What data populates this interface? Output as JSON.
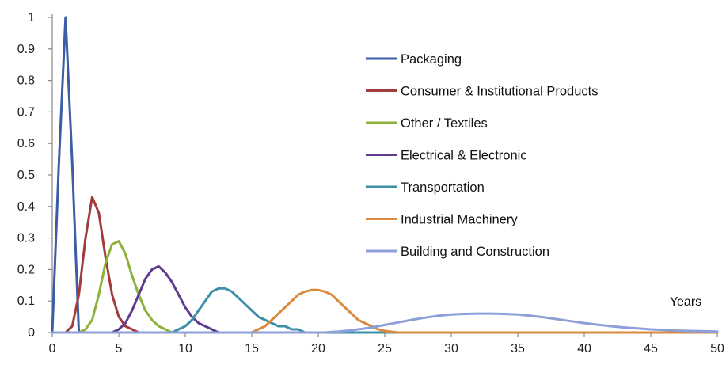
{
  "chart_data": {
    "type": "line",
    "title": "",
    "xlabel": "Years",
    "ylabel": "",
    "xlim": [
      0,
      50
    ],
    "ylim": [
      0,
      1
    ],
    "x_ticks": [
      "0",
      "5",
      "10",
      "15",
      "20",
      "25",
      "30",
      "35",
      "40",
      "45",
      "50"
    ],
    "y_ticks": [
      "0",
      "0.1",
      "0.2",
      "0.3",
      "0.4",
      "0.5",
      "0.6",
      "0.7",
      "0.8",
      "0.9",
      "1"
    ],
    "grid": false,
    "legend_position": "top-right",
    "x": [
      0,
      0.5,
      1,
      1.5,
      2,
      2.5,
      3,
      3.5,
      4,
      4.5,
      5,
      5.5,
      6,
      6.5,
      7,
      7.5,
      8,
      8.5,
      9,
      9.5,
      10,
      10.5,
      11,
      11.5,
      12,
      12.5,
      13,
      13.5,
      14,
      14.5,
      15,
      15.5,
      16,
      16.5,
      17,
      17.5,
      18,
      18.5,
      19,
      19.5,
      20,
      20.5,
      21,
      21.5,
      22,
      22.5,
      23,
      23.5,
      24,
      24.5,
      25,
      26,
      27,
      28,
      29,
      30,
      31,
      32,
      33,
      34,
      35,
      36,
      37,
      38,
      39,
      40,
      41,
      42,
      43,
      44,
      45,
      46,
      47,
      48,
      49,
      50
    ],
    "series": [
      {
        "name": "Packaging",
        "color": "#3a5da6",
        "values": [
          0,
          0.54,
          1,
          0.54,
          0,
          0,
          0,
          0,
          0,
          0,
          0,
          0,
          0,
          0,
          0,
          0,
          0,
          0,
          0,
          0,
          0,
          0,
          0,
          0,
          0,
          0,
          0,
          0,
          0,
          0,
          0,
          0,
          0,
          0,
          0,
          0,
          0,
          0,
          0,
          0,
          0,
          0,
          0,
          0,
          0,
          0,
          0,
          0,
          0,
          0,
          0,
          0,
          0,
          0,
          0,
          0,
          0,
          0,
          0,
          0,
          0,
          0,
          0,
          0,
          0,
          0,
          0,
          0,
          0,
          0,
          0,
          0,
          0,
          0,
          0,
          0
        ]
      },
      {
        "name": "Consumer & Institutional Products",
        "color": "#a23b3b",
        "values": [
          0,
          0,
          0,
          0.02,
          0.12,
          0.3,
          0.43,
          0.38,
          0.24,
          0.12,
          0.05,
          0.02,
          0.01,
          0,
          0,
          0,
          0,
          0,
          0,
          0,
          0,
          0,
          0,
          0,
          0,
          0,
          0,
          0,
          0,
          0,
          0,
          0,
          0,
          0,
          0,
          0,
          0,
          0,
          0,
          0,
          0,
          0,
          0,
          0,
          0,
          0,
          0,
          0,
          0,
          0,
          0,
          0,
          0,
          0,
          0,
          0,
          0,
          0,
          0,
          0,
          0,
          0,
          0,
          0,
          0,
          0,
          0,
          0,
          0,
          0,
          0,
          0,
          0,
          0,
          0,
          0
        ]
      },
      {
        "name": "Other / Textiles",
        "color": "#8cb23a",
        "values": [
          0,
          0,
          0,
          0,
          0,
          0.01,
          0.04,
          0.12,
          0.22,
          0.28,
          0.29,
          0.25,
          0.18,
          0.12,
          0.07,
          0.04,
          0.02,
          0.01,
          0,
          0,
          0,
          0,
          0,
          0,
          0,
          0,
          0,
          0,
          0,
          0,
          0,
          0,
          0,
          0,
          0,
          0,
          0,
          0,
          0,
          0,
          0,
          0,
          0,
          0,
          0,
          0,
          0,
          0,
          0,
          0,
          0,
          0,
          0,
          0,
          0,
          0,
          0,
          0,
          0,
          0,
          0,
          0,
          0,
          0,
          0,
          0,
          0,
          0,
          0,
          0,
          0,
          0,
          0,
          0,
          0,
          0
        ]
      },
      {
        "name": "Electrical & Electronic",
        "color": "#5e3b8c",
        "values": [
          0,
          0,
          0,
          0,
          0,
          0,
          0,
          0,
          0,
          0,
          0.01,
          0.03,
          0.07,
          0.12,
          0.17,
          0.2,
          0.21,
          0.19,
          0.16,
          0.12,
          0.08,
          0.05,
          0.03,
          0.02,
          0.01,
          0,
          0,
          0,
          0,
          0,
          0,
          0,
          0,
          0,
          0,
          0,
          0,
          0,
          0,
          0,
          0,
          0,
          0,
          0,
          0,
          0,
          0,
          0,
          0,
          0,
          0,
          0,
          0,
          0,
          0,
          0,
          0,
          0,
          0,
          0,
          0,
          0,
          0,
          0,
          0,
          0,
          0,
          0,
          0,
          0,
          0,
          0,
          0,
          0,
          0,
          0
        ]
      },
      {
        "name": "Transportation",
        "color": "#3d8fa8",
        "values": [
          0,
          0,
          0,
          0,
          0,
          0,
          0,
          0,
          0,
          0,
          0,
          0,
          0,
          0,
          0,
          0,
          0,
          0,
          0,
          0.01,
          0.02,
          0.04,
          0.07,
          0.1,
          0.13,
          0.14,
          0.14,
          0.13,
          0.11,
          0.09,
          0.07,
          0.05,
          0.04,
          0.03,
          0.02,
          0.02,
          0.01,
          0.01,
          0,
          0,
          0,
          0,
          0,
          0,
          0,
          0,
          0,
          0,
          0,
          0,
          0,
          0,
          0,
          0,
          0,
          0,
          0,
          0,
          0,
          0,
          0,
          0,
          0,
          0,
          0,
          0,
          0,
          0,
          0,
          0,
          0,
          0,
          0,
          0,
          0,
          0
        ]
      },
      {
        "name": "Industrial Machinery",
        "color": "#d98a3d",
        "values": [
          0,
          0,
          0,
          0,
          0,
          0,
          0,
          0,
          0,
          0,
          0,
          0,
          0,
          0,
          0,
          0,
          0,
          0,
          0,
          0,
          0,
          0,
          0,
          0,
          0,
          0,
          0,
          0,
          0,
          0,
          0,
          0.01,
          0.02,
          0.04,
          0.06,
          0.08,
          0.1,
          0.12,
          0.13,
          0.135,
          0.135,
          0.13,
          0.12,
          0.1,
          0.08,
          0.06,
          0.04,
          0.03,
          0.02,
          0.01,
          0.005,
          0,
          0,
          0,
          0,
          0,
          0,
          0,
          0,
          0,
          0,
          0,
          0,
          0,
          0,
          0,
          0,
          0,
          0,
          0,
          0,
          0,
          0,
          0,
          0,
          0
        ]
      },
      {
        "name": "Building and Construction",
        "color": "#8c9fd9",
        "values": [
          0,
          0,
          0,
          0,
          0,
          0,
          0,
          0,
          0,
          0,
          0,
          0,
          0,
          0,
          0,
          0,
          0,
          0,
          0,
          0,
          0,
          0,
          0,
          0,
          0,
          0,
          0,
          0,
          0,
          0,
          0,
          0,
          0,
          0,
          0,
          0,
          0,
          0,
          0,
          0,
          0,
          0,
          0.002,
          0.003,
          0.005,
          0.007,
          0.01,
          0.013,
          0.016,
          0.02,
          0.024,
          0.032,
          0.04,
          0.047,
          0.053,
          0.057,
          0.059,
          0.06,
          0.06,
          0.059,
          0.057,
          0.053,
          0.048,
          0.042,
          0.036,
          0.03,
          0.025,
          0.02,
          0.016,
          0.013,
          0.01,
          0.008,
          0.006,
          0.005,
          0.004,
          0.003
        ]
      }
    ]
  }
}
